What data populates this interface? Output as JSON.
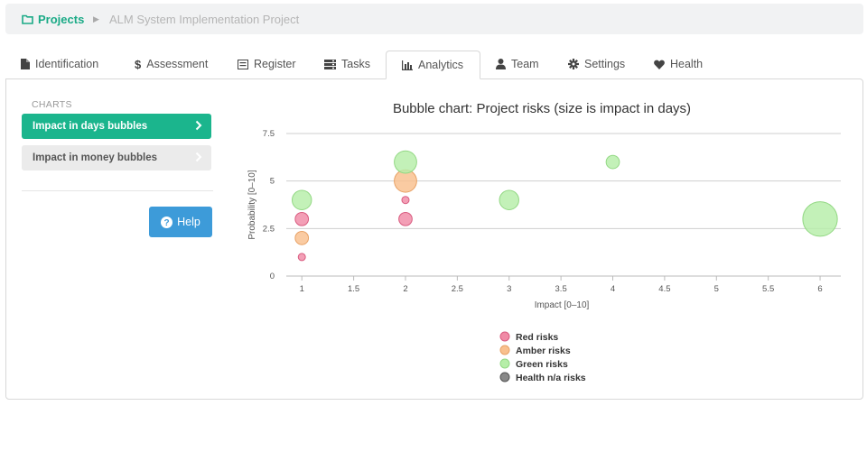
{
  "breadcrumb": {
    "home_label": "Projects",
    "current": "ALM System Implementation Project"
  },
  "tabs": [
    {
      "label": "Identification",
      "icon": "file-icon"
    },
    {
      "label": "Assessment",
      "icon": "dollar-icon"
    },
    {
      "label": "Register",
      "icon": "list-icon"
    },
    {
      "label": "Tasks",
      "icon": "tasks-icon"
    },
    {
      "label": "Analytics",
      "icon": "bar-chart-icon",
      "active": true
    },
    {
      "label": "Team",
      "icon": "user-icon"
    },
    {
      "label": "Settings",
      "icon": "gear-icon"
    },
    {
      "label": "Health",
      "icon": "heart-icon"
    }
  ],
  "sidebar": {
    "heading": "CHARTS",
    "items": [
      {
        "label": "Impact in days bubbles",
        "active": true
      },
      {
        "label": "Impact in money bubbles",
        "active": false
      }
    ],
    "help_label": "Help"
  },
  "colors": {
    "accent": "#1bb58d",
    "help": "#3d9bd9",
    "red": "#f08aa6",
    "amber": "#f9c08e",
    "green": "#b6eea8",
    "na": "#888888"
  },
  "chart_data": {
    "type": "scatter",
    "title": "Bubble chart: Project risks (size is impact in days)",
    "xlabel": "Impact [0–10]",
    "ylabel": "Probability [0–10]",
    "xlim": [
      0.85,
      6.2
    ],
    "ylim": [
      0,
      7.5
    ],
    "x_ticks": [
      "1",
      "1.5",
      "2",
      "2.5",
      "3",
      "3.5",
      "4",
      "4.5",
      "5",
      "5.5",
      "6"
    ],
    "y_ticks": [
      "0",
      "2.5",
      "5",
      "7.5"
    ],
    "grid": "horizontal",
    "legend_position": "bottom",
    "series": [
      {
        "name": "Red risks",
        "color": "#f08aa6",
        "stroke": "#d95c80",
        "points": [
          {
            "x": 1,
            "y": 3,
            "size": 3
          },
          {
            "x": 1,
            "y": 1,
            "size": 1
          },
          {
            "x": 2,
            "y": 4,
            "size": 1
          },
          {
            "x": 2,
            "y": 3,
            "size": 3
          }
        ]
      },
      {
        "name": "Amber risks",
        "color": "#f9c08e",
        "stroke": "#e8a266",
        "points": [
          {
            "x": 1,
            "y": 2,
            "size": 3
          },
          {
            "x": 2,
            "y": 5,
            "size": 6
          }
        ]
      },
      {
        "name": "Green risks",
        "color": "#b6eea8",
        "stroke": "#93d884",
        "points": [
          {
            "x": 1,
            "y": 4,
            "size": 5
          },
          {
            "x": 2,
            "y": 6,
            "size": 6
          },
          {
            "x": 3,
            "y": 4,
            "size": 5
          },
          {
            "x": 4,
            "y": 6,
            "size": 3
          },
          {
            "x": 6,
            "y": 3,
            "size": 10
          }
        ]
      },
      {
        "name": "Health n/a risks",
        "color": "#888888",
        "stroke": "#555555",
        "points": []
      }
    ]
  }
}
